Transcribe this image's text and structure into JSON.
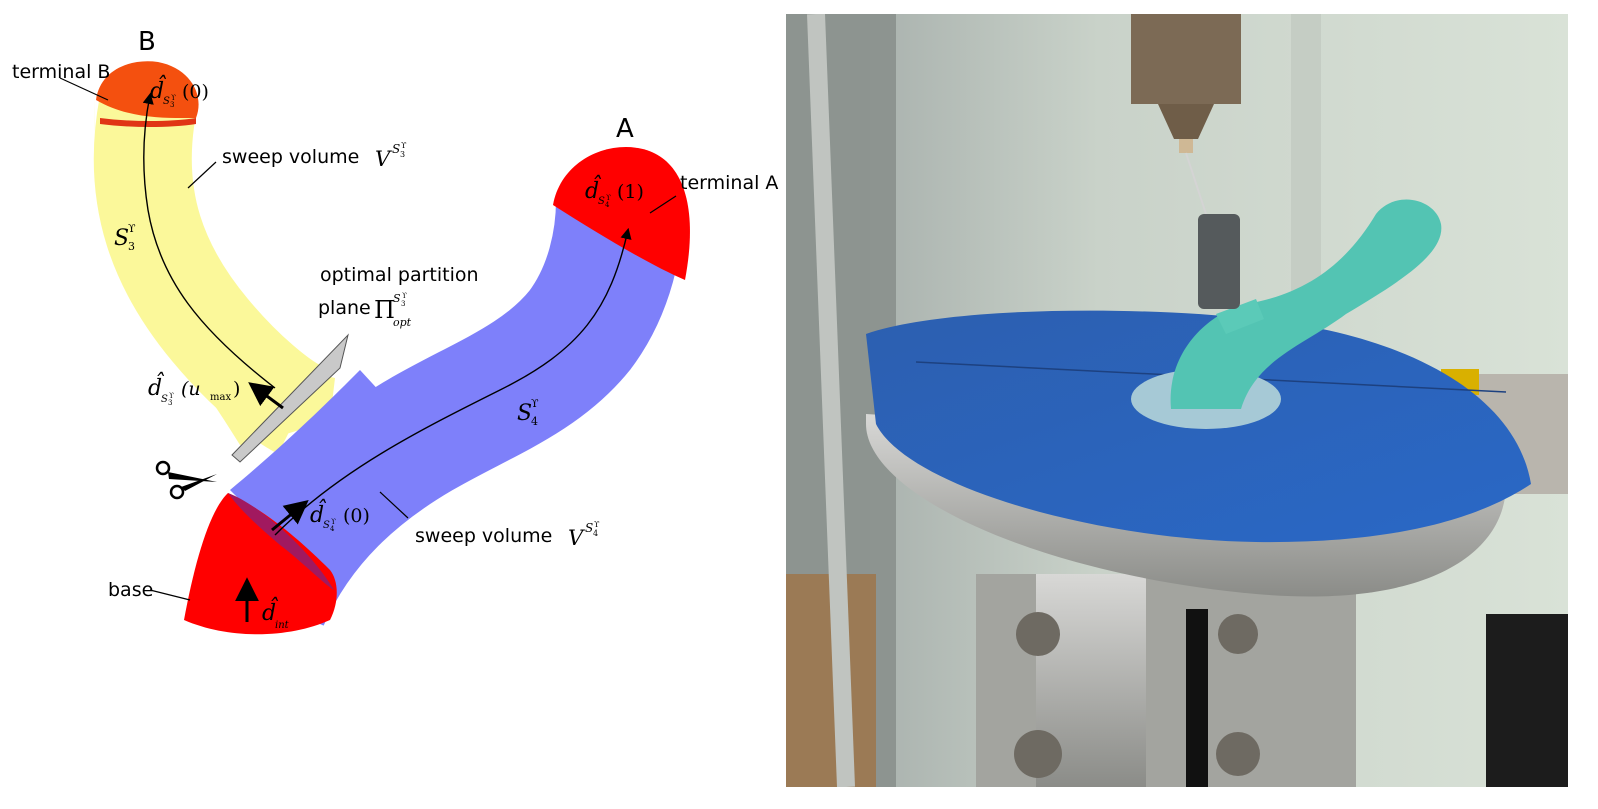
{
  "diagram": {
    "point_b_label": "B",
    "point_a_label": "A",
    "terminal_b_label": "terminal B",
    "terminal_a_label": "terminal A",
    "base_label": "base",
    "sweep_volume_upper_label": "sweep volume",
    "sweep_volume_lower_label": "sweep volume",
    "partition_label_line1": "optimal partition",
    "partition_label_line2": "plane",
    "math": {
      "d_hat": "d̂",
      "V": "V",
      "S": "S",
      "Pi": "Π",
      "opt_sub": "opt",
      "upsilon": "ϒ",
      "sub3": "3",
      "sub4": "4",
      "arg0": "(0)",
      "arg1": "(1)",
      "umax_u": "(u",
      "umax_max": "max",
      "umax_close": ")",
      "int_sub": "int"
    },
    "colors": {
      "yellow_branch": "#fbf89a",
      "blue_branch": "#7e80fa",
      "terminal_red": "#ff0000",
      "terminal_b_orange": "#f4500f",
      "base_seam": "#a1195f"
    }
  },
  "photo": {
    "icons": [
      "print-nozzle",
      "filament-strand",
      "printed-cyan-branch",
      "build-plate",
      "blue-tape",
      "aluminum-platform",
      "socket-bolts"
    ]
  }
}
